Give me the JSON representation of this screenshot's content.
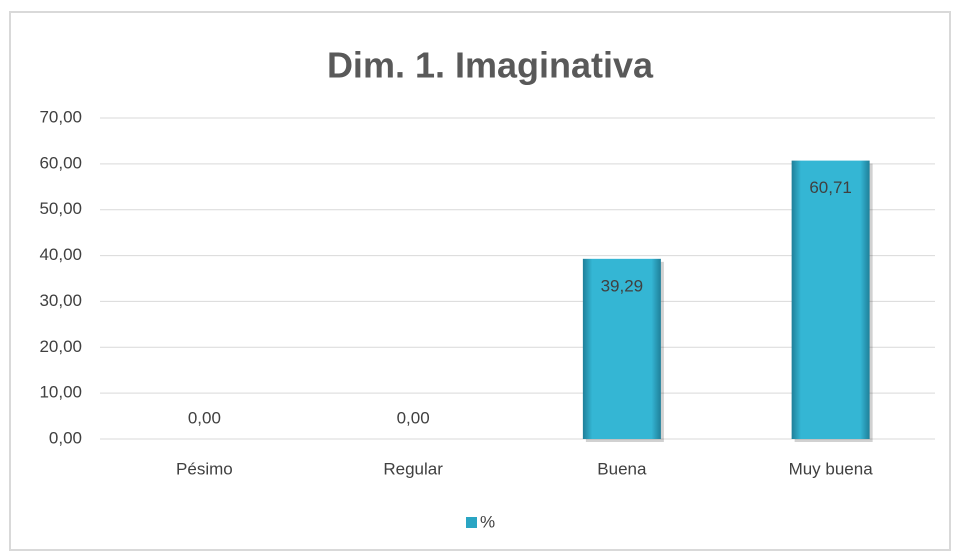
{
  "chart_data": {
    "type": "bar",
    "title": "Dim. 1. Imaginativa",
    "categories": [
      "Pésimo",
      "Regular",
      "Buena",
      "Muy buena"
    ],
    "series": [
      {
        "name": "%",
        "color": "#2aa5c3",
        "values": [
          0,
          0,
          39.29,
          60.71
        ],
        "value_labels": [
          "0,00",
          "0,00",
          "39,29",
          "60,71"
        ]
      }
    ],
    "ylim": [
      0,
      70
    ],
    "yticks": [
      {
        "value": 0,
        "label": "0,00"
      },
      {
        "value": 10,
        "label": "10,00"
      },
      {
        "value": 20,
        "label": "20,00"
      },
      {
        "value": 30,
        "label": "30,00"
      },
      {
        "value": 40,
        "label": "40,00"
      },
      {
        "value": 50,
        "label": "50,00"
      },
      {
        "value": 60,
        "label": "60,00"
      },
      {
        "value": 70,
        "label": "70,00"
      }
    ],
    "grid": true,
    "legend": "bottom"
  }
}
